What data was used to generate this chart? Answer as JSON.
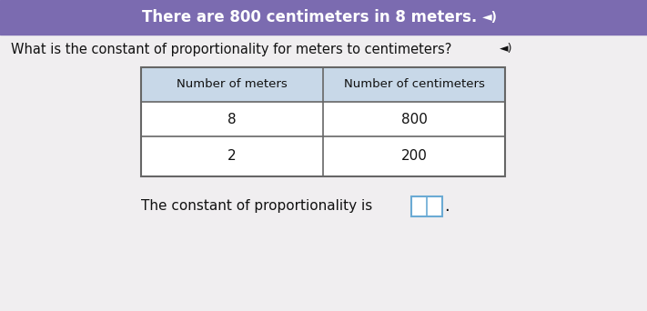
{
  "header_text": "There are 800 centimeters in 8 meters.",
  "header_bg": "#7B6BB0",
  "header_text_color": "#FFFFFF",
  "body_bg": "#D8D8D8",
  "question_text": "What is the constant of proportionality for meters to centimeters?",
  "question_color": "#111111",
  "col1_header": "Number of meters",
  "col2_header": "Number of centimeters",
  "row1": [
    "8",
    "800"
  ],
  "row2": [
    "2",
    "200"
  ],
  "footer_text": "The constant of proportionality is",
  "table_border_color": "#666666",
  "table_header_bg": "#C8D8E8",
  "table_row_bg": "#FFFFFF",
  "table_text_color": "#111111",
  "answer_box_color": "#6AAAD4"
}
